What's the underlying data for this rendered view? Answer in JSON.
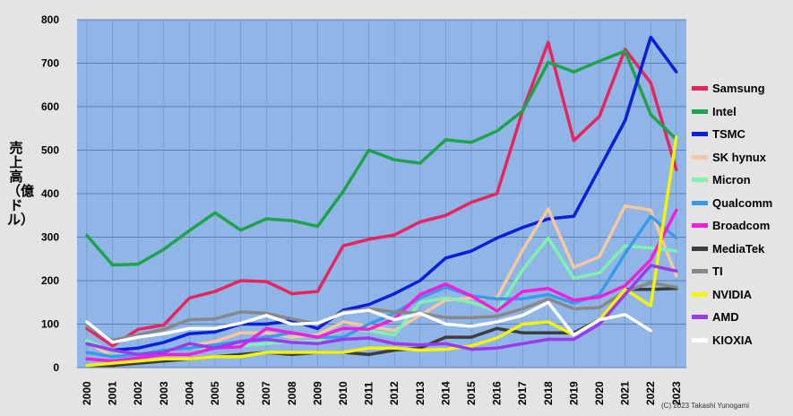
{
  "chart_data": {
    "type": "line",
    "title": "",
    "ylabel": "売上高（億ドル）",
    "xlabel": "",
    "ylim": [
      0,
      800
    ],
    "yticks": [
      0,
      100,
      200,
      300,
      400,
      500,
      600,
      700,
      800
    ],
    "x": [
      "2000",
      "2001",
      "2002",
      "2003",
      "2004",
      "2005",
      "2006",
      "2007",
      "2008",
      "2009",
      "2010",
      "2011",
      "2012",
      "2013",
      "2014",
      "2015",
      "2016",
      "2017",
      "2018",
      "2019",
      "2020",
      "2021",
      "2022",
      "2023"
    ],
    "grid": true,
    "legend_position": "right",
    "plot_background": "#8fb6e6",
    "series": [
      {
        "name": "Samsung",
        "color": "#e8245e",
        "values": [
          90,
          50,
          88,
          98,
          160,
          175,
          200,
          198,
          170,
          175,
          280,
          295,
          305,
          335,
          350,
          380,
          400,
          590,
          748,
          522,
          578,
          732,
          655,
          455
        ]
      },
      {
        "name": "Intel",
        "color": "#1ea24c",
        "values": [
          304,
          236,
          238,
          272,
          315,
          356,
          316,
          342,
          338,
          325,
          405,
          500,
          478,
          470,
          524,
          518,
          544,
          590,
          702,
          680,
          705,
          728,
          582,
          525
        ]
      },
      {
        "name": "TSMC",
        "color": "#0a1fd8",
        "values": [
          55,
          40,
          45,
          58,
          78,
          82,
          100,
          100,
          108,
          90,
          132,
          145,
          170,
          200,
          252,
          268,
          298,
          322,
          342,
          348,
          458,
          568,
          760,
          680
        ]
      },
      {
        "name": "SK hynux",
        "color": "#f6c7a0",
        "values": [
          60,
          25,
          30,
          35,
          50,
          60,
          80,
          80,
          70,
          75,
          105,
          95,
          85,
          120,
          155,
          160,
          160,
          270,
          365,
          230,
          255,
          372,
          362,
          210
        ]
      },
      {
        "name": "Micron",
        "color": "#80f2b0",
        "values": [
          62,
          36,
          30,
          40,
          45,
          45,
          50,
          55,
          60,
          60,
          90,
          85,
          75,
          150,
          160,
          150,
          130,
          225,
          298,
          205,
          218,
          280,
          275,
          268
        ]
      },
      {
        "name": "Qualcomm",
        "color": "#3a9ae8",
        "values": [
          35,
          25,
          30,
          40,
          45,
          52,
          60,
          70,
          80,
          70,
          70,
          100,
          125,
          160,
          185,
          165,
          158,
          158,
          168,
          148,
          168,
          262,
          348,
          298
        ]
      },
      {
        "name": "Broadcom",
        "color": "#f020d8",
        "values": [
          20,
          15,
          22,
          30,
          30,
          45,
          48,
          90,
          80,
          70,
          90,
          88,
          112,
          168,
          192,
          165,
          130,
          175,
          182,
          155,
          162,
          188,
          248,
          362
        ]
      },
      {
        "name": "MediaTek",
        "color": "#3c3c3c",
        "values": [
          5,
          5,
          10,
          15,
          20,
          25,
          30,
          35,
          30,
          35,
          35,
          30,
          40,
          45,
          70,
          70,
          90,
          80,
          80,
          80,
          110,
          180,
          180,
          182
        ]
      },
      {
        "name": "TI",
        "color": "#888888",
        "values": [
          95,
          63,
          75,
          88,
          110,
          112,
          128,
          125,
          112,
          100,
          128,
          135,
          128,
          125,
          115,
          115,
          118,
          135,
          158,
          135,
          138,
          175,
          195,
          185
        ]
      },
      {
        "name": "NVIDIA",
        "color": "#f4f40a",
        "values": [
          5,
          10,
          15,
          20,
          20,
          25,
          25,
          35,
          35,
          35,
          35,
          45,
          45,
          40,
          42,
          50,
          68,
          100,
          105,
          75,
          110,
          180,
          142,
          530
        ]
      },
      {
        "name": "AMD",
        "color": "#9a3aec",
        "values": [
          55,
          40,
          30,
          35,
          55,
          45,
          60,
          65,
          58,
          55,
          65,
          68,
          55,
          52,
          55,
          42,
          45,
          55,
          65,
          65,
          100,
          168,
          235,
          222
        ]
      },
      {
        "name": "KIOXIA",
        "color": "#ffffff",
        "values": [
          105,
          58,
          70,
          78,
          90,
          90,
          102,
          120,
          100,
          102,
          125,
          132,
          110,
          125,
          100,
          95,
          105,
          120,
          150,
          75,
          110,
          122,
          85,
          null
        ]
      }
    ]
  },
  "credit": "(C) 2023 Takashi Yunogami"
}
